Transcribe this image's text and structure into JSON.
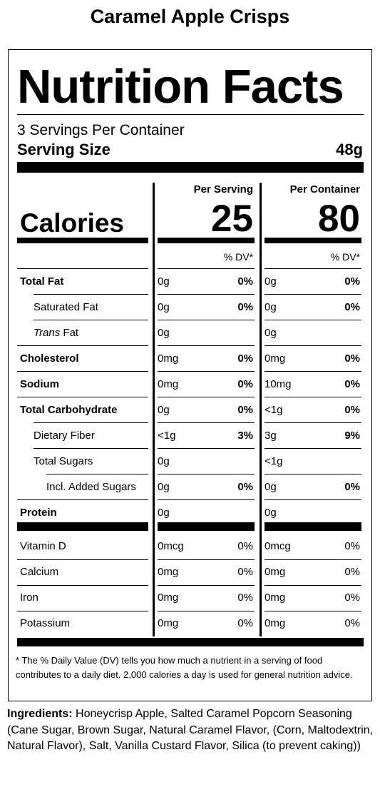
{
  "product_title": "Caramel Apple Crisps",
  "label": {
    "heading": "Nutrition Facts",
    "servings_per_container": "3 Servings Per Container",
    "serving_size_label": "Serving Size",
    "serving_size_value": "48g",
    "col_per_serving": "Per Serving",
    "col_per_container": "Per Container",
    "calories_label": "Calories",
    "calories_per_serving": "25",
    "calories_per_container": "80",
    "dv_label": "% DV*",
    "nutrients": [
      {
        "name": "Total Fat",
        "bold": true,
        "indent": 0,
        "serving_amount": "0g",
        "serving_dv": "0%",
        "container_amount": "0g",
        "container_dv": "0%"
      },
      {
        "name": "Saturated Fat",
        "bold": false,
        "indent": 1,
        "serving_amount": "0g",
        "serving_dv": "0%",
        "container_amount": "0g",
        "container_dv": "0%"
      },
      {
        "name_italic": "Trans",
        "name": " Fat",
        "bold": false,
        "indent": 1,
        "serving_amount": "0g",
        "serving_dv": "",
        "container_amount": "0g",
        "container_dv": ""
      },
      {
        "name": "Cholesterol",
        "bold": true,
        "indent": 0,
        "serving_amount": "0mg",
        "serving_dv": "0%",
        "container_amount": "0mg",
        "container_dv": "0%"
      },
      {
        "name": "Sodium",
        "bold": true,
        "indent": 0,
        "serving_amount": "0mg",
        "serving_dv": "0%",
        "container_amount": "10mg",
        "container_dv": "0%"
      },
      {
        "name": "Total Carbohydrate",
        "bold": true,
        "indent": 0,
        "serving_amount": "0g",
        "serving_dv": "0%",
        "container_amount": "<1g",
        "container_dv": "0%"
      },
      {
        "name": "Dietary Fiber",
        "bold": false,
        "indent": 1,
        "serving_amount": "<1g",
        "serving_dv": "3%",
        "container_amount": "3g",
        "container_dv": "9%"
      },
      {
        "name": "Total Sugars",
        "bold": false,
        "indent": 1,
        "serving_amount": "0g",
        "serving_dv": "",
        "container_amount": "<1g",
        "container_dv": ""
      },
      {
        "name": "Incl. Added Sugars",
        "bold": false,
        "indent": 2,
        "serving_amount": "0g",
        "serving_dv": "0%",
        "container_amount": "0g",
        "container_dv": "0%"
      },
      {
        "name": "Protein",
        "bold": true,
        "indent": 0,
        "serving_amount": "0g",
        "serving_dv": "",
        "container_amount": "0g",
        "container_dv": ""
      }
    ],
    "vitamins": [
      {
        "name": "Vitamin D",
        "serving_amount": "0mcg",
        "serving_dv": "0%",
        "container_amount": "0mcg",
        "container_dv": "0%"
      },
      {
        "name": "Calcium",
        "serving_amount": "0mg",
        "serving_dv": "0%",
        "container_amount": "0mg",
        "container_dv": "0%"
      },
      {
        "name": "Iron",
        "serving_amount": "0mg",
        "serving_dv": "0%",
        "container_amount": "0mg",
        "container_dv": "0%"
      },
      {
        "name": "Potassium",
        "serving_amount": "0mg",
        "serving_dv": "0%",
        "container_amount": "0mg",
        "container_dv": "0%"
      }
    ],
    "footnote": "* The % Daily Value (DV) tells you how much a nutrient in a serving of food contributes to a daily diet. 2,000 calories a day is used for general nutrition advice."
  },
  "ingredients": {
    "label": "Ingredients:",
    "text": " Honeycrisp Apple, Salted Caramel Popcorn Seasoning (Cane Sugar, Brown Sugar, Natural Caramel Flavor, (Corn, Maltodextrin, Natural Flavor), Salt, Vanilla Custard Flavor, Silica (to prevent caking))"
  }
}
